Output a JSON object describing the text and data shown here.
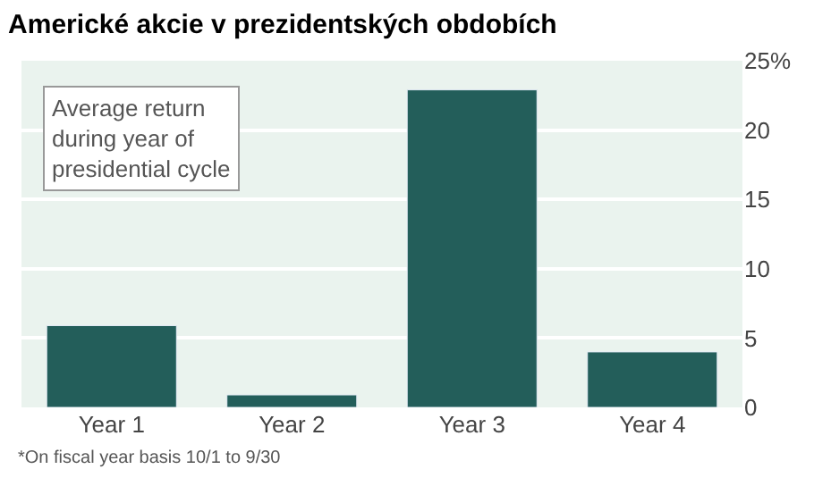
{
  "chart_data": {
    "type": "bar",
    "title": "Americké akcie v prezidentských obdobích",
    "categories": [
      "Year 1",
      "Year 2",
      "Year 3",
      "Year 4"
    ],
    "values": [
      5.9,
      0.9,
      22.9,
      4.0
    ],
    "color": "#235e5a",
    "ylim": [
      0,
      25
    ],
    "yticks": [
      0,
      5,
      10,
      15,
      20,
      {
        "value": 25,
        "label": "25%"
      }
    ],
    "grid": "y",
    "annotations": [
      "Average return during year of presidential cycle",
      "*On fiscal year basis 10/1 to 9/30"
    ]
  }
}
